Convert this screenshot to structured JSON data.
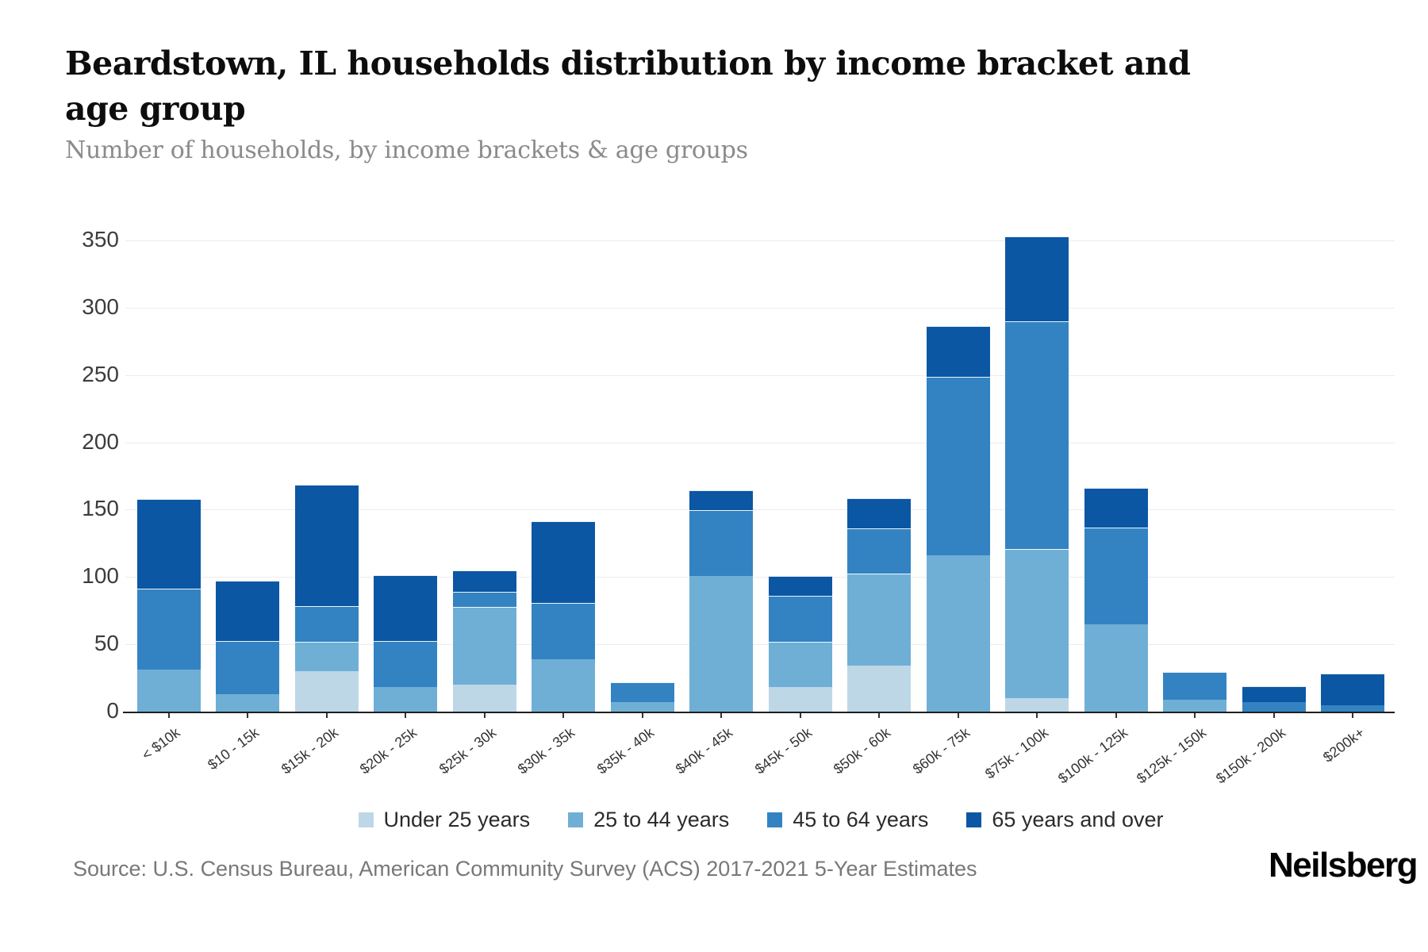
{
  "header": {
    "title": "Beardstown, IL households distribution by income bracket and age group",
    "subtitle": "Number of households, by income brackets & age groups"
  },
  "footer": {
    "source": "Source: U.S. Census Bureau, American Community Survey (ACS) 2017-2021 5-Year Estimates",
    "logo": "Neilsberg"
  },
  "chart_data": {
    "type": "bar",
    "stacked": true,
    "title": "Beardstown, IL households distribution by income bracket and age group",
    "subtitle": "Number of households, by income brackets & age groups",
    "xlabel": "",
    "ylabel": "Number of households",
    "ylim": [
      0,
      350
    ],
    "yticks": [
      0,
      50,
      100,
      150,
      200,
      250,
      300,
      350
    ],
    "grid": true,
    "legend_position": "bottom",
    "categories": [
      "< $10k",
      "$10 - 15k",
      "$15k - 20k",
      "$20k - 25k",
      "$25k - 30k",
      "$30k - 35k",
      "$35k - 40k",
      "$40k - 45k",
      "$45k - 50k",
      "$50k - 60k",
      "$60k - 75k",
      "$75k - 100k",
      "$100k - 125k",
      "$125k - 150k",
      "$150k - 200k",
      "$200k+"
    ],
    "series": [
      {
        "name": "Under 25 years",
        "color": "#bdd7e7",
        "values": [
          0,
          0,
          30,
          0,
          20,
          0,
          0,
          0,
          18,
          34,
          0,
          10,
          0,
          0,
          0,
          0
        ]
      },
      {
        "name": "25 to 44 years",
        "color": "#6fafd6",
        "values": [
          31,
          13,
          21,
          18,
          57,
          39,
          7,
          101,
          33,
          68,
          116,
          110,
          65,
          9,
          0,
          0
        ]
      },
      {
        "name": "45 to 64 years",
        "color": "#3383c2",
        "values": [
          60,
          39,
          26,
          34,
          11,
          41,
          14,
          48,
          34,
          33,
          132,
          169,
          71,
          20,
          7,
          5
        ]
      },
      {
        "name": "65 years and over",
        "color": "#0b57a4",
        "values": [
          66,
          44,
          90,
          48,
          15,
          60,
          0,
          14,
          14,
          22,
          37,
          62,
          29,
          0,
          11,
          23
        ]
      }
    ],
    "totals": [
      157,
      96,
      167,
      100,
      103,
      140,
      21,
      163,
      99,
      157,
      285,
      351,
      165,
      29,
      18,
      28
    ]
  },
  "colors": {
    "gridline": "#ececec",
    "axis": "#1f1f1f",
    "tick_label": "#333333"
  }
}
